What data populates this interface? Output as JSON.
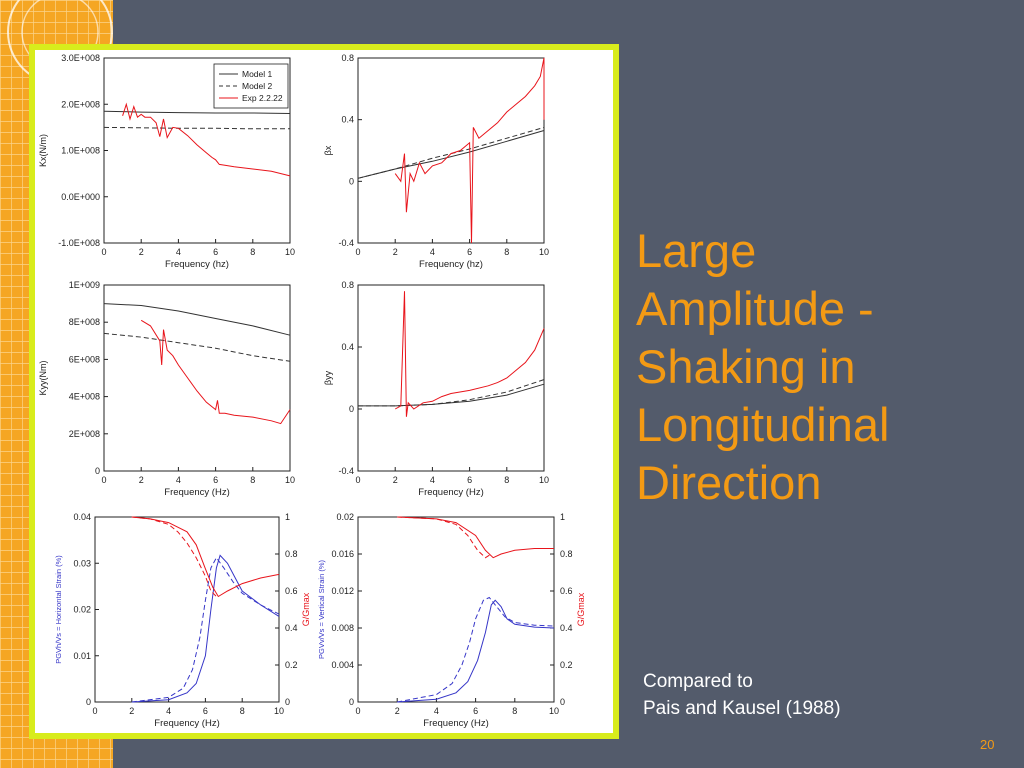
{
  "slide": {
    "title_lines": [
      "Large",
      "Amplitude -",
      "Shaking in",
      "Longitudinal",
      "Direction"
    ],
    "caption_lines": [
      "Compared to",
      "Pais and Kausel (1988)"
    ],
    "page_number": "20",
    "colors": {
      "background": "#535b6b",
      "accent": "#f39a14",
      "frame": "#d8ec1c",
      "strip": "#f5a623"
    }
  },
  "chart_data": [
    {
      "type": "line",
      "xlabel": "Frequency (hz)",
      "ylabel": "Kx(N/m)",
      "xlim": [
        0,
        10
      ],
      "ylim": [
        -100000000,
        300000000
      ],
      "xticks": [
        0,
        2,
        4,
        6,
        8,
        10
      ],
      "yticks": [
        -100000000,
        0,
        100000000,
        200000000,
        300000000
      ],
      "yticklabels": [
        "-1.0E+008",
        "0.0E+000",
        "1.0E+008",
        "2.0E+008",
        "3.0E+008"
      ],
      "legend": {
        "position": "top-right",
        "entries": [
          "Model 1",
          "Model 2",
          "Exp 2.2.22"
        ]
      },
      "series": [
        {
          "name": "Model 1",
          "style": "solid",
          "color": "#333333",
          "x": [
            0,
            2,
            4,
            6,
            8,
            10
          ],
          "y": [
            185000000,
            183000000,
            182000000,
            181000000,
            181000000,
            180000000
          ]
        },
        {
          "name": "Model 2",
          "style": "dashed",
          "color": "#333333",
          "x": [
            0,
            2,
            4,
            6,
            8,
            10
          ],
          "y": [
            150000000,
            149000000,
            148000000,
            148000000,
            147000000,
            147000000
          ]
        },
        {
          "name": "Exp 2.2.22",
          "style": "solid",
          "color": "#e8141b",
          "x": [
            1.0,
            1.2,
            1.4,
            1.6,
            1.8,
            2.0,
            2.2,
            2.5,
            2.8,
            3.0,
            3.2,
            3.4,
            3.7,
            4.0,
            4.5,
            5.0,
            5.5,
            5.8,
            6.0,
            6.2,
            6.5,
            7.0,
            8.0,
            9.0,
            10.0
          ],
          "y": [
            175000000,
            200000000,
            168000000,
            195000000,
            172000000,
            178000000,
            172000000,
            172000000,
            160000000,
            130000000,
            168000000,
            128000000,
            150000000,
            148000000,
            132000000,
            112000000,
            95000000,
            85000000,
            80000000,
            70000000,
            68000000,
            65000000,
            60000000,
            55000000,
            45000000
          ]
        }
      ]
    },
    {
      "type": "line",
      "xlabel": "Frequency (hz)",
      "ylabel": "βx",
      "xlim": [
        0,
        10
      ],
      "ylim": [
        -0.4,
        0.8
      ],
      "xticks": [
        0,
        2,
        4,
        6,
        8,
        10
      ],
      "yticks": [
        -0.4,
        0,
        0.4,
        0.8
      ],
      "yticklabels": [
        "-0.4",
        "0",
        "0.4",
        "0.8"
      ],
      "series": [
        {
          "name": "Model 1",
          "style": "solid",
          "color": "#333333",
          "x": [
            0,
            2,
            4,
            6,
            8,
            10
          ],
          "y": [
            0.02,
            0.08,
            0.13,
            0.19,
            0.26,
            0.33
          ]
        },
        {
          "name": "Model 2",
          "style": "dashed",
          "color": "#333333",
          "x": [
            0,
            2,
            4,
            6,
            8,
            10
          ],
          "y": [
            0.02,
            0.08,
            0.15,
            0.21,
            0.28,
            0.35
          ]
        },
        {
          "name": "Exp 2.2.22",
          "style": "solid",
          "color": "#e8141b",
          "x": [
            2.0,
            2.3,
            2.5,
            2.6,
            2.8,
            3.0,
            3.3,
            3.6,
            4.0,
            4.5,
            5.0,
            5.5,
            6.0,
            6.1,
            6.2,
            6.5,
            7.0,
            7.5,
            8.0,
            8.5,
            9.0,
            9.5,
            9.8,
            10.0,
            10.0
          ],
          "y": [
            0.05,
            0.0,
            0.18,
            -0.2,
            0.05,
            0.0,
            0.12,
            0.05,
            0.1,
            0.12,
            0.18,
            0.2,
            0.25,
            -0.4,
            0.35,
            0.28,
            0.33,
            0.38,
            0.45,
            0.5,
            0.55,
            0.62,
            0.68,
            0.8,
            0.4
          ]
        }
      ]
    },
    {
      "type": "line",
      "xlabel": "Frequency (Hz)",
      "ylabel": "Kyy(Nm)",
      "xlim": [
        0,
        10
      ],
      "ylim": [
        0,
        1000000000
      ],
      "xticks": [
        0,
        2,
        4,
        6,
        8,
        10
      ],
      "yticks": [
        0,
        200000000,
        400000000,
        600000000,
        800000000,
        1000000000
      ],
      "yticklabels": [
        "0",
        "2E+008",
        "4E+008",
        "6E+008",
        "8E+008",
        "1E+009"
      ],
      "series": [
        {
          "name": "Model 1",
          "style": "solid",
          "color": "#333333",
          "x": [
            0,
            2,
            4,
            6,
            8,
            10
          ],
          "y": [
            900000000,
            890000000,
            860000000,
            820000000,
            780000000,
            730000000
          ]
        },
        {
          "name": "Model 2",
          "style": "dashed",
          "color": "#333333",
          "x": [
            0,
            2,
            4,
            6,
            8,
            10
          ],
          "y": [
            740000000,
            720000000,
            690000000,
            660000000,
            620000000,
            590000000
          ]
        },
        {
          "name": "Exp 2.2.22",
          "style": "solid",
          "color": "#e8141b",
          "x": [
            2.0,
            2.5,
            3.0,
            3.1,
            3.2,
            3.4,
            3.7,
            4.0,
            4.5,
            5.0,
            5.5,
            6.0,
            6.1,
            6.2,
            6.5,
            7.0,
            8.0,
            9.0,
            9.5,
            10.0
          ],
          "y": [
            810000000,
            780000000,
            700000000,
            570000000,
            760000000,
            650000000,
            620000000,
            570000000,
            500000000,
            430000000,
            370000000,
            330000000,
            380000000,
            310000000,
            310000000,
            300000000,
            290000000,
            270000000,
            255000000,
            330000000
          ]
        }
      ]
    },
    {
      "type": "line",
      "xlabel": "Frequency (Hz)",
      "ylabel": "βyy",
      "xlim": [
        0,
        10
      ],
      "ylim": [
        -0.4,
        0.8
      ],
      "xticks": [
        0,
        2,
        4,
        6,
        8,
        10
      ],
      "yticks": [
        -0.4,
        0,
        0.4,
        0.8
      ],
      "yticklabels": [
        "-0.4",
        "0",
        "0.4",
        "0.8"
      ],
      "series": [
        {
          "name": "Model 1",
          "style": "solid",
          "color": "#333333",
          "x": [
            0,
            2,
            4,
            6,
            8,
            10
          ],
          "y": [
            0.02,
            0.02,
            0.03,
            0.05,
            0.09,
            0.16
          ]
        },
        {
          "name": "Model 2",
          "style": "dashed",
          "color": "#333333",
          "x": [
            0,
            2,
            4,
            6,
            8,
            10
          ],
          "y": [
            0.02,
            0.02,
            0.03,
            0.06,
            0.11,
            0.19
          ]
        },
        {
          "name": "Exp 2.2.22",
          "style": "solid",
          "color": "#e8141b",
          "x": [
            2.0,
            2.3,
            2.5,
            2.6,
            2.7,
            3.0,
            3.5,
            4.0,
            4.5,
            5.0,
            6.0,
            7.0,
            7.5,
            8.0,
            8.5,
            9.0,
            9.5,
            10.0
          ],
          "y": [
            0.0,
            0.02,
            0.76,
            -0.05,
            0.04,
            0.0,
            0.04,
            0.05,
            0.08,
            0.1,
            0.12,
            0.15,
            0.17,
            0.2,
            0.25,
            0.3,
            0.38,
            0.52
          ]
        }
      ]
    },
    {
      "type": "line",
      "xlabel": "Frequency (Hz)",
      "ylabel": "PGVh/Vs = Horizontal Strain (%)",
      "y2label": "G/Gmax",
      "xlim": [
        0,
        10
      ],
      "ylim": [
        0,
        0.04
      ],
      "y2lim": [
        0,
        1
      ],
      "xticks": [
        0,
        2,
        4,
        6,
        8,
        10
      ],
      "yticks": [
        0,
        0.01,
        0.02,
        0.03,
        0.04
      ],
      "yticklabels": [
        "0",
        "0.01",
        "0.02",
        "0.03",
        "0.04"
      ],
      "y2ticks": [
        0,
        0.2,
        0.4,
        0.6,
        0.8,
        1
      ],
      "y2ticklabels": [
        "0",
        "0.2",
        "0.4",
        "0.6",
        "0.8",
        "1"
      ],
      "series": [
        {
          "name": "",
          "axis": "left",
          "style": "solid",
          "color": "#3636c8",
          "x": [
            2,
            4,
            5,
            5.5,
            6,
            6.3,
            6.6,
            6.8,
            7.2,
            7.6,
            8,
            9,
            10
          ],
          "y": [
            0,
            0.0005,
            0.002,
            0.004,
            0.01,
            0.02,
            0.029,
            0.0317,
            0.03,
            0.027,
            0.024,
            0.021,
            0.0185
          ]
        },
        {
          "name": "",
          "axis": "left",
          "style": "dashed",
          "color": "#3636c8",
          "x": [
            2,
            4,
            4.8,
            5.3,
            5.7,
            6.0,
            6.3,
            6.6,
            7.0,
            7.5,
            8,
            9,
            10
          ],
          "y": [
            0,
            0.001,
            0.003,
            0.007,
            0.014,
            0.022,
            0.029,
            0.0312,
            0.029,
            0.026,
            0.0235,
            0.021,
            0.019
          ]
        },
        {
          "name": "",
          "axis": "right",
          "style": "solid",
          "color": "#e8141b",
          "x": [
            2,
            3,
            4,
            5,
            5.5,
            6.0,
            6.4,
            6.7,
            7.2,
            8,
            9,
            10
          ],
          "y": [
            1.0,
            0.99,
            0.97,
            0.92,
            0.85,
            0.72,
            0.62,
            0.57,
            0.6,
            0.64,
            0.67,
            0.69
          ]
        },
        {
          "name": "",
          "axis": "right",
          "style": "dashed",
          "color": "#e8141b",
          "x": [
            2,
            3,
            4,
            4.5,
            5,
            5.5,
            6.0,
            6.3,
            6.6
          ],
          "y": [
            1.0,
            0.99,
            0.96,
            0.92,
            0.86,
            0.78,
            0.68,
            0.6,
            0.57
          ]
        }
      ]
    },
    {
      "type": "line",
      "xlabel": "Frequency (Hz)",
      "ylabel": "PGVv/Vs = Vertical Strain (%)",
      "y2label": "G/Gmax",
      "xlim": [
        0,
        10
      ],
      "ylim": [
        0,
        0.02
      ],
      "y2lim": [
        0,
        1
      ],
      "xticks": [
        0,
        2,
        4,
        6,
        8,
        10
      ],
      "yticks": [
        0,
        0.004,
        0.008,
        0.012,
        0.016,
        0.02
      ],
      "yticklabels": [
        "0",
        "0.004",
        "0.008",
        "0.012",
        "0.016",
        "0.02"
      ],
      "y2ticks": [
        0,
        0.2,
        0.4,
        0.6,
        0.8,
        1
      ],
      "y2ticklabels": [
        "0",
        "0.2",
        "0.4",
        "0.6",
        "0.8",
        "1"
      ],
      "series": [
        {
          "name": "",
          "axis": "left",
          "style": "solid",
          "color": "#3636c8",
          "x": [
            2,
            4,
            5,
            5.6,
            6.1,
            6.5,
            6.8,
            7.0,
            7.3,
            7.6,
            8,
            9,
            10
          ],
          "y": [
            0,
            0.0003,
            0.001,
            0.0022,
            0.0045,
            0.0075,
            0.0105,
            0.011,
            0.0103,
            0.009,
            0.0084,
            0.0081,
            0.008
          ]
        },
        {
          "name": "",
          "axis": "left",
          "style": "dashed",
          "color": "#3636c8",
          "x": [
            2,
            4,
            4.8,
            5.3,
            5.7,
            6.0,
            6.4,
            6.7,
            7.0,
            7.5,
            8,
            9,
            10
          ],
          "y": [
            0,
            0.0008,
            0.002,
            0.004,
            0.0065,
            0.009,
            0.011,
            0.0113,
            0.0105,
            0.0092,
            0.0086,
            0.0083,
            0.0082
          ]
        },
        {
          "name": "",
          "axis": "right",
          "style": "solid",
          "color": "#e8141b",
          "x": [
            2,
            4,
            5,
            6.0,
            6.5,
            6.9,
            7.3,
            8,
            9,
            10
          ],
          "y": [
            1.0,
            0.99,
            0.97,
            0.9,
            0.82,
            0.78,
            0.8,
            0.82,
            0.83,
            0.83
          ]
        },
        {
          "name": "",
          "axis": "right",
          "style": "dashed",
          "color": "#e8141b",
          "x": [
            2,
            4,
            5,
            5.6,
            6.1,
            6.5,
            6.8
          ],
          "y": [
            1.0,
            0.99,
            0.96,
            0.9,
            0.82,
            0.78,
            0.8
          ]
        }
      ]
    }
  ]
}
